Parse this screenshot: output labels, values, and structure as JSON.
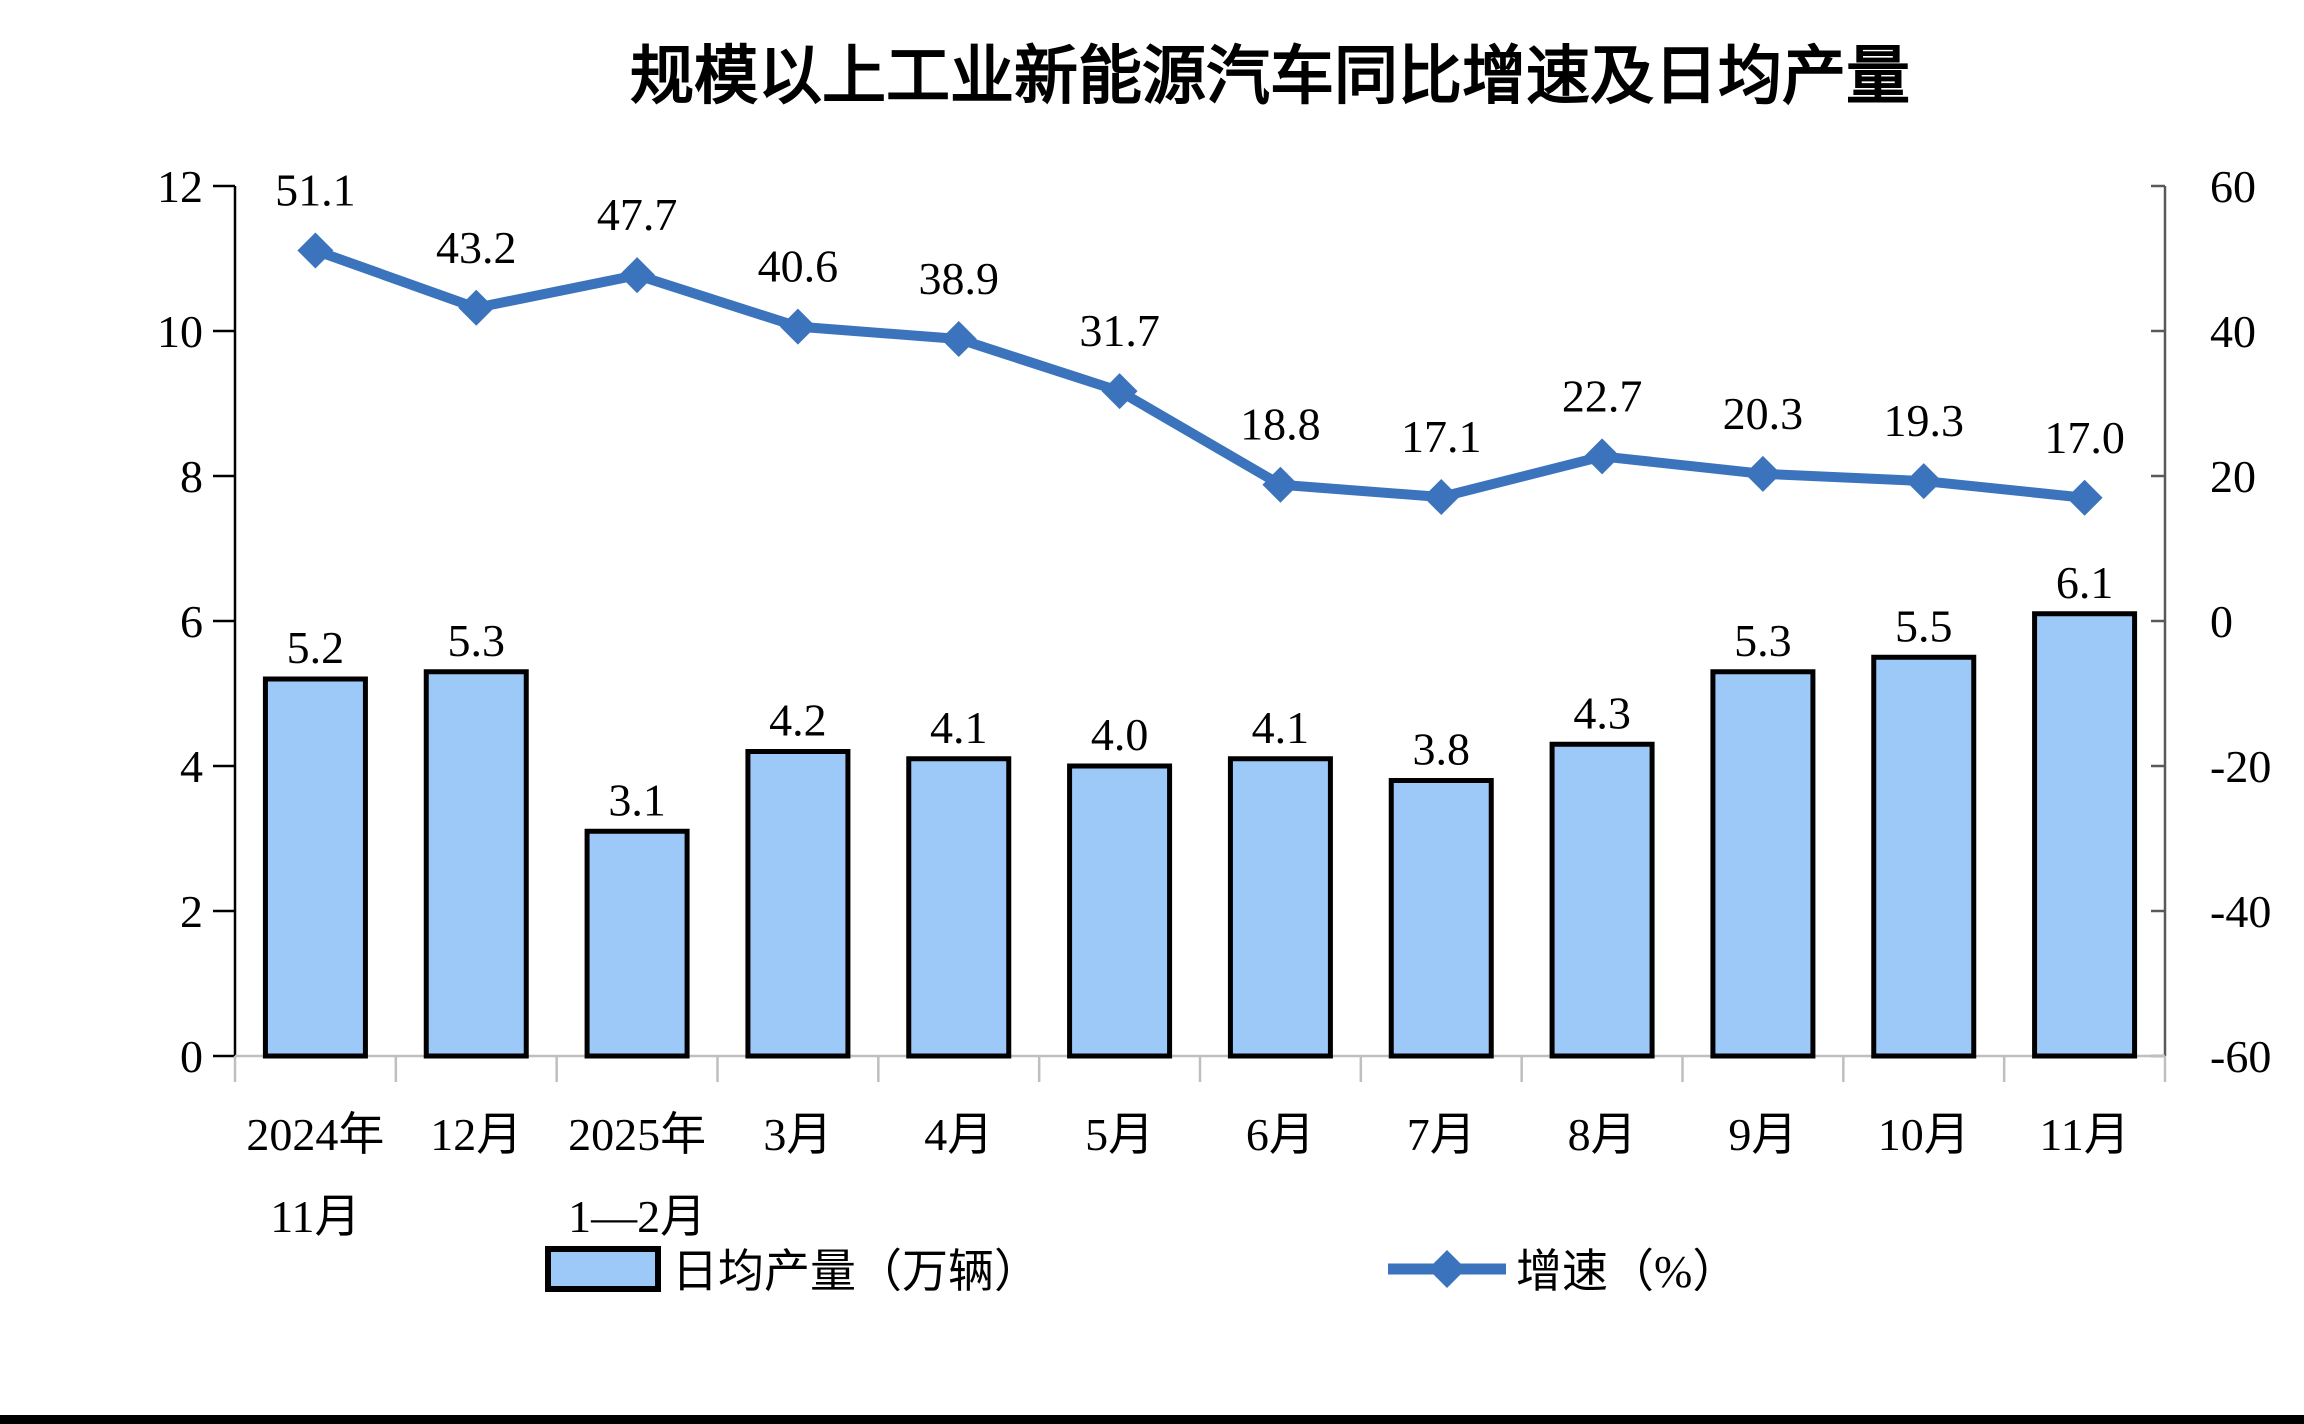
{
  "colors": {
    "bar_fill": "#9DC9F8",
    "bar_border": "#000000",
    "line": "#3B74BD",
    "left_axis": "#000000",
    "right_axis": "#595959",
    "bottom_axis": "#BFBFBF",
    "text": "#000000"
  },
  "chart_data": {
    "type": "bar+line combo",
    "title": "规模以上工业新能源汽车同比增速及日均产量",
    "categories": [
      "2024年\n11月",
      "12月",
      "2025年\n1—2月",
      "3月",
      "4月",
      "5月",
      "6月",
      "7月",
      "8月",
      "9月",
      "10月",
      "11月"
    ],
    "series": [
      {
        "name": "日均产量（万辆）",
        "type": "bar",
        "axis": "left",
        "values": [
          5.2,
          5.3,
          3.1,
          4.2,
          4.1,
          4.0,
          4.1,
          3.8,
          4.3,
          5.3,
          5.5,
          6.1
        ]
      },
      {
        "name": "增速（%）",
        "type": "line",
        "axis": "right",
        "values": [
          51.1,
          43.2,
          47.7,
          40.6,
          38.9,
          31.7,
          18.8,
          17.1,
          22.7,
          20.3,
          19.3,
          17.0
        ]
      }
    ],
    "left_axis": {
      "min": 0,
      "max": 12,
      "step": 2,
      "ticks": [
        0,
        2,
        4,
        6,
        8,
        10,
        12
      ]
    },
    "right_axis": {
      "min": -60,
      "max": 60,
      "step": 20,
      "ticks": [
        -60,
        -40,
        -20,
        0,
        20,
        40,
        60
      ]
    },
    "grid": false,
    "data_labels": "above, one decimal",
    "legend_position": "bottom"
  }
}
